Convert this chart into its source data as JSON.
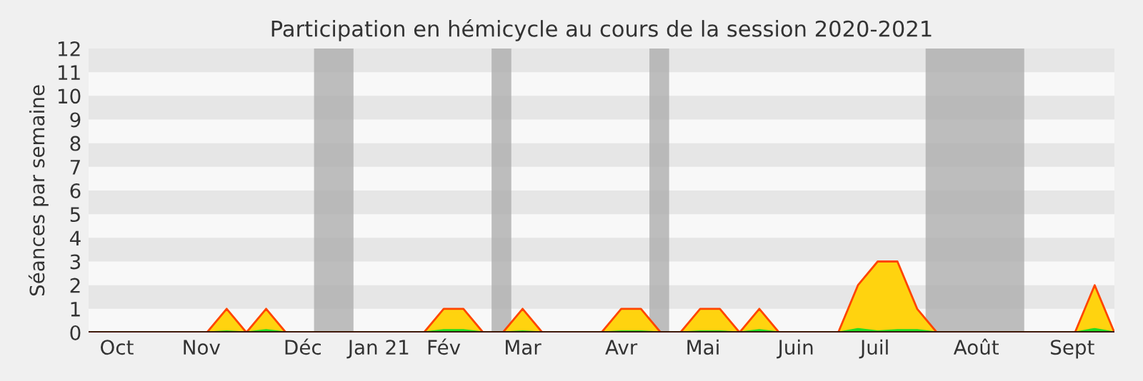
{
  "chart_data": {
    "type": "area",
    "title": "Participation en hémicycle au cours de la session 2020-2021",
    "ylabel": "Séances par semaine",
    "x": [
      "2020-09-28",
      "2020-10-05",
      "2020-10-12",
      "2020-10-19",
      "2020-10-26",
      "2020-11-02",
      "2020-11-09",
      "2020-11-16",
      "2020-11-23",
      "2020-11-30",
      "2020-12-07",
      "2020-12-14",
      "2020-12-21",
      "2020-12-28",
      "2021-01-04",
      "2021-01-11",
      "2021-01-18",
      "2021-01-25",
      "2021-02-01",
      "2021-02-08",
      "2021-02-15",
      "2021-02-22",
      "2021-03-01",
      "2021-03-08",
      "2021-03-15",
      "2021-03-22",
      "2021-03-29",
      "2021-04-05",
      "2021-04-12",
      "2021-04-19",
      "2021-04-26",
      "2021-05-03",
      "2021-05-10",
      "2021-05-17",
      "2021-05-24",
      "2021-05-31",
      "2021-06-07",
      "2021-06-14",
      "2021-06-21",
      "2021-06-28",
      "2021-07-05",
      "2021-07-12",
      "2021-07-19",
      "2021-07-26",
      "2021-08-02",
      "2021-08-09",
      "2021-08-16",
      "2021-08-23",
      "2021-08-30",
      "2021-09-06",
      "2021-09-13",
      "2021-09-20",
      "2021-09-27"
    ],
    "series": [
      {
        "color": "#ffd30f",
        "values": [
          0,
          0,
          0,
          0,
          0,
          0,
          0,
          1,
          0,
          1,
          0,
          0,
          0,
          0,
          0,
          0,
          0,
          0,
          1,
          1,
          0,
          0,
          1,
          0,
          0,
          0,
          0,
          1,
          1,
          0,
          0,
          1,
          1,
          0,
          1,
          0,
          0,
          0,
          0,
          2,
          3,
          3,
          1,
          0,
          0,
          0,
          0,
          0,
          0,
          0,
          0,
          2,
          0
        ]
      },
      {
        "color": "#22dd22",
        "values": [
          0,
          0,
          0,
          0,
          0,
          0,
          0,
          0.05,
          0,
          0.1,
          0,
          0,
          0,
          0,
          0,
          0,
          0,
          0,
          0.1,
          0.1,
          0,
          0,
          0.05,
          0,
          0,
          0,
          0,
          0.05,
          0.05,
          0,
          0,
          0.05,
          0.05,
          0,
          0.1,
          0,
          0,
          0,
          0,
          0.15,
          0.05,
          0.1,
          0.1,
          0,
          0,
          0,
          0,
          0,
          0,
          0,
          0,
          0.15,
          0
        ]
      }
    ],
    "bands": [
      {
        "axis": "x",
        "from": "2020-12-17",
        "to": "2020-12-31",
        "color": "#aaaaaa"
      },
      {
        "axis": "x",
        "from": "2021-02-18",
        "to": "2021-02-25",
        "color": "#aaaaaa"
      },
      {
        "axis": "x",
        "from": "2021-04-15",
        "to": "2021-04-22",
        "color": "#aaaaaa"
      },
      {
        "axis": "x",
        "from": "2021-07-22",
        "to": "2021-08-26",
        "color": "#aaaaaa"
      }
    ],
    "xlim": [
      "2020-09-28",
      "2021-09-27"
    ],
    "xticks": [
      {
        "value": "2020-10-08",
        "label": "Oct"
      },
      {
        "value": "2020-11-07",
        "label": "Nov"
      },
      {
        "value": "2020-12-13",
        "label": "Déc"
      },
      {
        "value": "2021-01-09",
        "label": "Jan 21"
      },
      {
        "value": "2021-02-01",
        "label": "Fév"
      },
      {
        "value": "2021-03-01",
        "label": "Mar"
      },
      {
        "value": "2021-04-05",
        "label": "Avr"
      },
      {
        "value": "2021-05-04",
        "label": "Mai"
      },
      {
        "value": "2021-06-06",
        "label": "Juin"
      },
      {
        "value": "2021-07-04",
        "label": "Juil"
      },
      {
        "value": "2021-08-09",
        "label": "Août"
      },
      {
        "value": "2021-09-12",
        "label": "Sept"
      }
    ],
    "ylim": [
      0,
      12
    ],
    "yticks": [
      0,
      1,
      2,
      3,
      4,
      5,
      6,
      7,
      8,
      9,
      10,
      11,
      12
    ]
  }
}
